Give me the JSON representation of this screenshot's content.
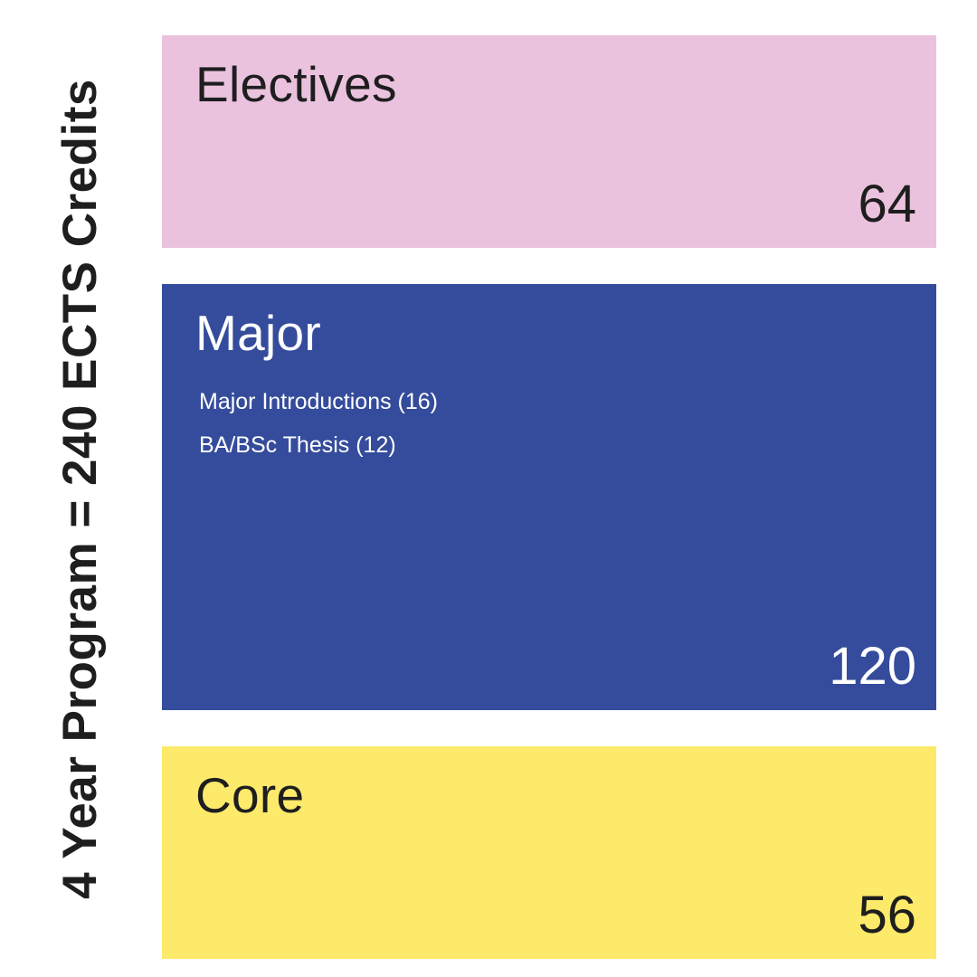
{
  "side_label": "4 Year Program = 240 ECTS Credits",
  "colors": {
    "electives": "#ebc2dd",
    "major": "#354c9c",
    "core": "#fde96a",
    "dark_text": "#1e1e1e",
    "light_text": "#ffffff"
  },
  "blocks": [
    {
      "title": "Electives",
      "value": "64",
      "items": []
    },
    {
      "title": "Major",
      "value": "120",
      "items": [
        "Major Introductions (16)",
        "BA/BSc Thesis (12)"
      ]
    },
    {
      "title": "Core",
      "value": "56",
      "items": []
    }
  ]
}
